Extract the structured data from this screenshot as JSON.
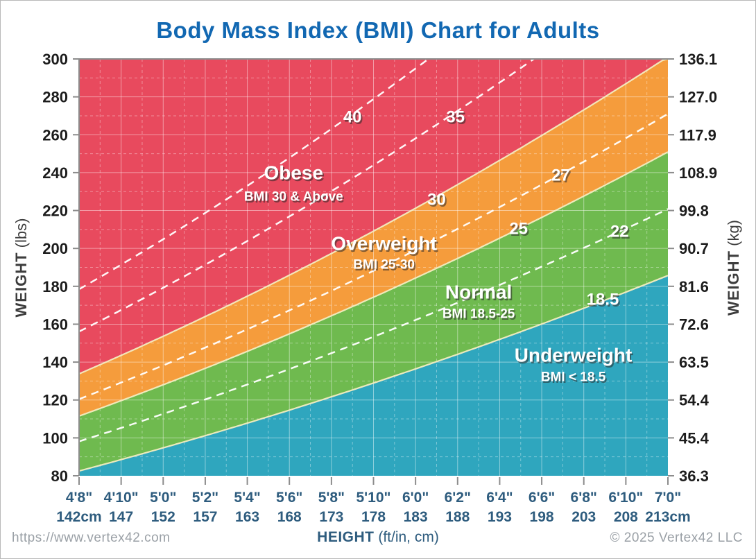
{
  "title": "Body Mass Index (BMI) Chart for Adults",
  "footer": {
    "url": "https://www.vertex42.com",
    "copyright": "© 2025 Vertex42 LLC"
  },
  "axes": {
    "left_title_bold": "WEIGHT",
    "left_title_rest": " (lbs)",
    "right_title_bold": "WEIGHT",
    "right_title_rest": " (kg)",
    "bottom_title_bold": "HEIGHT",
    "bottom_title_rest": " (ft/in, cm)"
  },
  "colors": {
    "title_blue": "#1268B2",
    "bottom_axis_text": "#2E5C7E",
    "side_axis_text": "#1c1c1c",
    "axis_line_gray": "#8c8c8c",
    "footer_gray": "#9aa0a6",
    "obese_red": "#E84A5E",
    "overweight_orange": "#F59C3C",
    "normal_green": "#6FBA4F",
    "underweight_blue": "#2FA6BE",
    "boundary_cream": "#F2ECC0",
    "isoline_white": "#ffffff"
  },
  "chart_data": {
    "type": "area",
    "title": "Body Mass Index (BMI) Chart for Adults",
    "x_axis": {
      "label": "HEIGHT (ft/in, cm)",
      "units": "inches",
      "range": [
        56,
        84
      ],
      "ticks": [
        {
          "in": 56,
          "ftin": "4'8\"",
          "cm": "142cm"
        },
        {
          "in": 58,
          "ftin": "4'10\"",
          "cm": "147"
        },
        {
          "in": 60,
          "ftin": "5'0\"",
          "cm": "152"
        },
        {
          "in": 62,
          "ftin": "5'2\"",
          "cm": "157"
        },
        {
          "in": 64,
          "ftin": "5'4\"",
          "cm": "163"
        },
        {
          "in": 66,
          "ftin": "5'6\"",
          "cm": "168"
        },
        {
          "in": 68,
          "ftin": "5'8\"",
          "cm": "173"
        },
        {
          "in": 70,
          "ftin": "5'10\"",
          "cm": "178"
        },
        {
          "in": 72,
          "ftin": "6'0\"",
          "cm": "183"
        },
        {
          "in": 74,
          "ftin": "6'2\"",
          "cm": "188"
        },
        {
          "in": 76,
          "ftin": "6'4\"",
          "cm": "193"
        },
        {
          "in": 78,
          "ftin": "6'6\"",
          "cm": "198"
        },
        {
          "in": 80,
          "ftin": "6'8\"",
          "cm": "203"
        },
        {
          "in": 82,
          "ftin": "6'10\"",
          "cm": "208"
        },
        {
          "in": 84,
          "ftin": "7'0\"",
          "cm": "213cm"
        }
      ]
    },
    "y_axis_left": {
      "label": "WEIGHT (lbs)",
      "range": [
        80,
        300
      ],
      "tick_step": 20
    },
    "y_axis_right": {
      "label": "WEIGHT (kg)"
    },
    "y_ticks": [
      {
        "lb": "80",
        "kg": "36.3"
      },
      {
        "lb": "100",
        "kg": "45.4"
      },
      {
        "lb": "120",
        "kg": "54.4"
      },
      {
        "lb": "140",
        "kg": "63.5"
      },
      {
        "lb": "160",
        "kg": "72.6"
      },
      {
        "lb": "180",
        "kg": "81.6"
      },
      {
        "lb": "200",
        "kg": "90.7"
      },
      {
        "lb": "220",
        "kg": "99.8"
      },
      {
        "lb": "240",
        "kg": "108.9"
      },
      {
        "lb": "260",
        "kg": "117.9"
      },
      {
        "lb": "280",
        "kg": "127.0"
      },
      {
        "lb": "300",
        "kg": "136.1"
      }
    ],
    "grid": {
      "h_minor_step_lb": 10,
      "v_minor_step_in": 1,
      "on": true
    },
    "regions": [
      {
        "name": "Underweight",
        "label": "Underweight",
        "sublabel": "BMI < 18.5",
        "bmi_min": null,
        "bmi_max": 18.5,
        "color": "#2FA6BE",
        "label_at": {
          "h": 79.5,
          "w": 143.7
        },
        "sublabel_at": {
          "h": 79.5,
          "w": 132.0
        }
      },
      {
        "name": "Normal",
        "label": "Normal",
        "sublabel": "BMI 18.5-25",
        "bmi_min": 18.5,
        "bmi_max": 25,
        "color": "#6FBA4F",
        "label_at": {
          "h": 75.0,
          "w": 177.0
        },
        "sublabel_at": {
          "h": 75.0,
          "w": 165.3
        }
      },
      {
        "name": "Overweight",
        "label": "Overweight",
        "sublabel": "BMI 25-30",
        "bmi_min": 25,
        "bmi_max": 30,
        "color": "#F59C3C",
        "label_at": {
          "h": 70.5,
          "w": 202.6
        },
        "sublabel_at": {
          "h": 70.5,
          "w": 191.2
        }
      },
      {
        "name": "Obese",
        "label": "Obese",
        "sublabel": "BMI 30 & Above",
        "bmi_min": 30,
        "bmi_max": null,
        "color": "#E84A5E",
        "label_at": {
          "h": 66.2,
          "w": 240.0
        },
        "sublabel_at": {
          "h": 66.2,
          "w": 227.2
        }
      }
    ],
    "boundary_labels": [
      {
        "bmi": 30,
        "label": "30",
        "label_at": {
          "h": 73.0,
          "w": 225.7
        }
      },
      {
        "bmi": 25,
        "label": "25",
        "label_at": {
          "h": 76.9,
          "w": 210.3
        }
      },
      {
        "bmi": 18.5,
        "label": "18.5",
        "label_at": {
          "h": 80.9,
          "w": 173.0
        }
      }
    ],
    "isolines": [
      {
        "bmi": 40,
        "label": "40",
        "label_at": {
          "h": 69.0,
          "w": 269.2
        }
      },
      {
        "bmi": 35,
        "label": "35",
        "label_at": {
          "h": 73.9,
          "w": 269.2
        }
      },
      {
        "bmi": 27,
        "label": "27",
        "label_at": {
          "h": 78.9,
          "w": 238.5
        }
      },
      {
        "bmi": 22,
        "label": "22",
        "label_at": {
          "h": 81.7,
          "w": 208.8
        }
      }
    ]
  }
}
